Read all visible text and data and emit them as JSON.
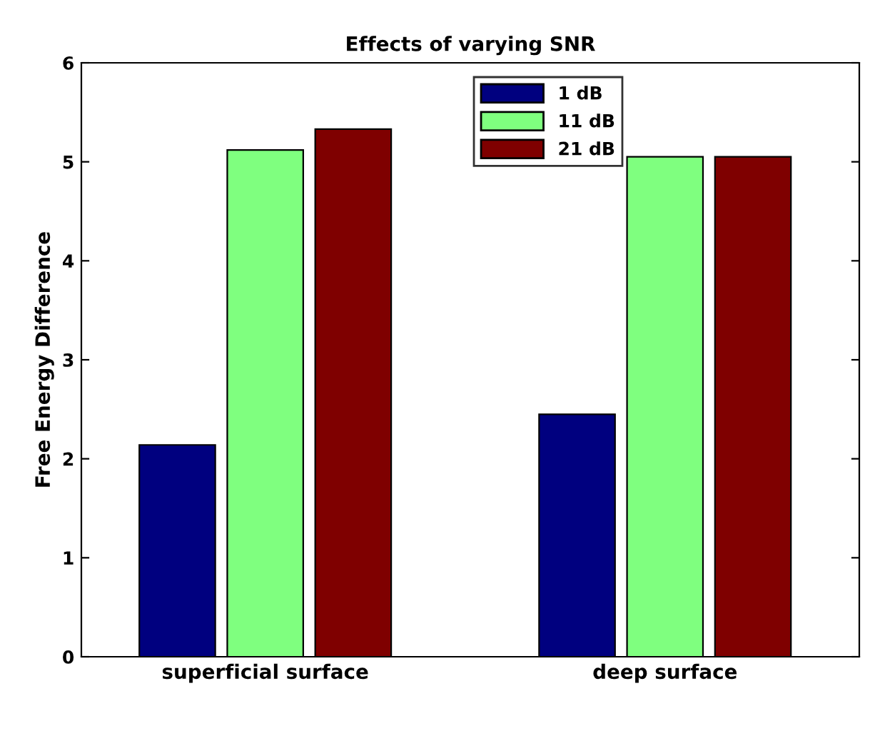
{
  "chart_data": {
    "type": "bar",
    "title": "Effects of varying SNR",
    "ylabel": "Free Energy Difference",
    "categories": [
      "superficial surface",
      "deep surface"
    ],
    "series": [
      {
        "name": "1 dB",
        "color": "#00007f",
        "values": [
          2.14,
          2.45
        ]
      },
      {
        "name": "11 dB",
        "color": "#7fff7f",
        "values": [
          5.12,
          5.05
        ]
      },
      {
        "name": "21 dB",
        "color": "#7f0000",
        "values": [
          5.33,
          5.05
        ]
      }
    ],
    "ylim": [
      0,
      6
    ],
    "yticks": [
      0,
      1,
      2,
      3,
      4,
      5,
      6
    ],
    "grid": false,
    "legend": "top"
  }
}
